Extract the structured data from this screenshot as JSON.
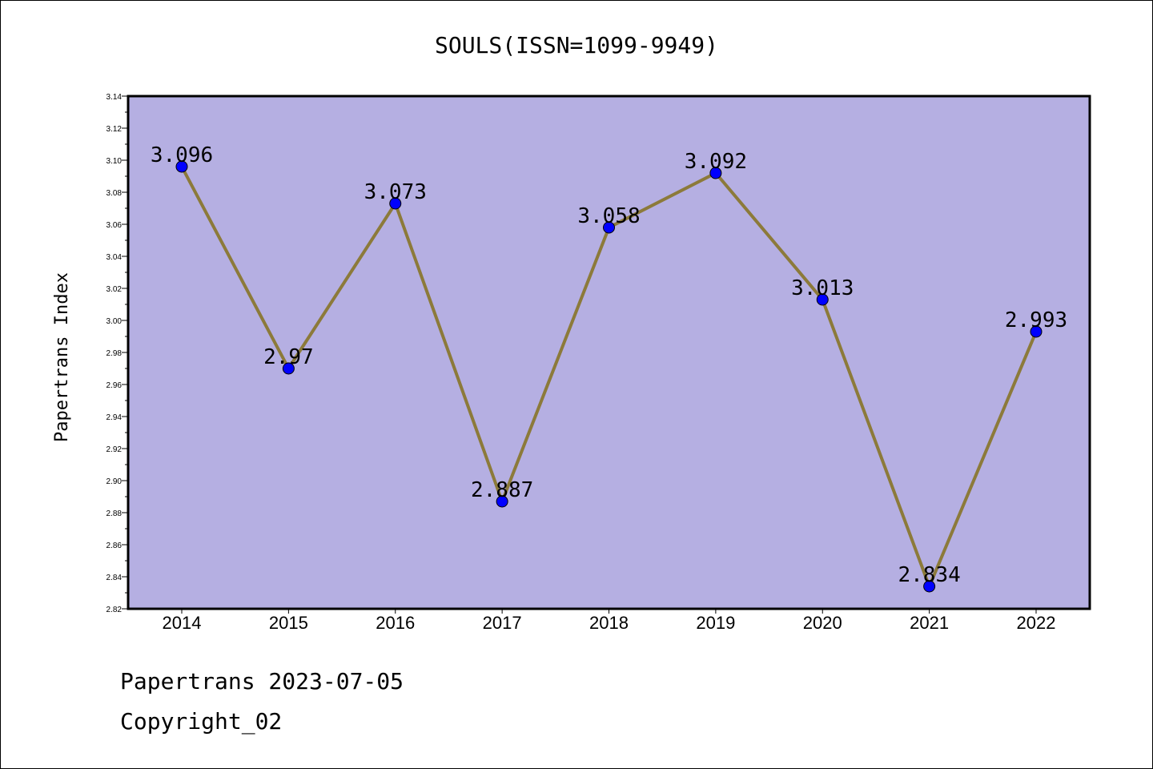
{
  "chart_data": {
    "type": "line",
    "title": "SOULS(ISSN=1099-9949)",
    "xlabel": "",
    "ylabel": "Papertrans Index",
    "categories": [
      "2014",
      "2015",
      "2016",
      "2017",
      "2018",
      "2019",
      "2020",
      "2021",
      "2022"
    ],
    "series": [
      {
        "values": [
          3.096,
          2.97,
          3.073,
          2.887,
          3.058,
          3.092,
          3.013,
          2.834,
          2.993
        ],
        "labels": [
          "3.096",
          "2.97",
          "3.073",
          "2.887",
          "3.058",
          "3.092",
          "3.013",
          "2.834",
          "2.993"
        ]
      }
    ],
    "ylim": [
      2.82,
      3.14
    ],
    "yticks": [
      "2.82",
      "2.84",
      "2.86",
      "2.88",
      "2.90",
      "2.92",
      "2.94",
      "2.96",
      "2.98",
      "3.00",
      "3.02",
      "3.04",
      "3.06",
      "3.08",
      "3.10",
      "3.12",
      "3.14"
    ],
    "grid": false,
    "colors": {
      "plot_background": "#b5afe2",
      "line": "#8c7a3a",
      "marker": "#0000ff"
    }
  },
  "footer": {
    "line1": "Papertrans 2023-07-05",
    "line2": "Copyright_02"
  }
}
